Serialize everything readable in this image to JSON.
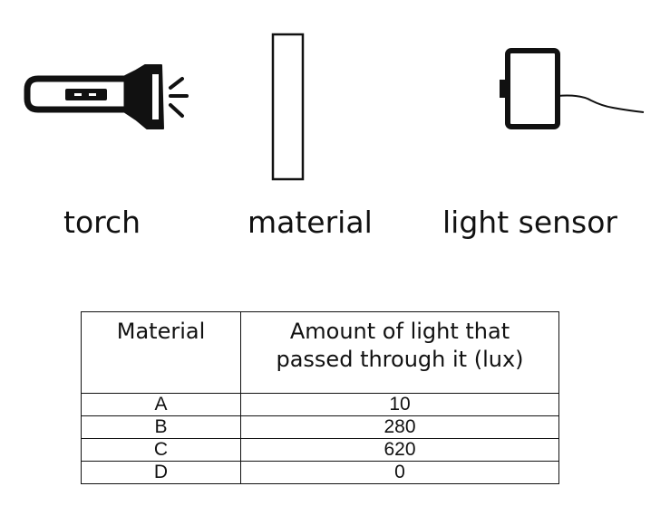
{
  "apparatus": {
    "labels": {
      "torch": "torch",
      "material": "material",
      "sensor": "light sensor"
    }
  },
  "table": {
    "headers": [
      "Material",
      "Amount of light that passed through it (lux)"
    ],
    "rows": [
      {
        "material": "A",
        "lux": "10"
      },
      {
        "material": "B",
        "lux": "280"
      },
      {
        "material": "C",
        "lux": "620"
      },
      {
        "material": "D",
        "lux": "0"
      }
    ]
  }
}
